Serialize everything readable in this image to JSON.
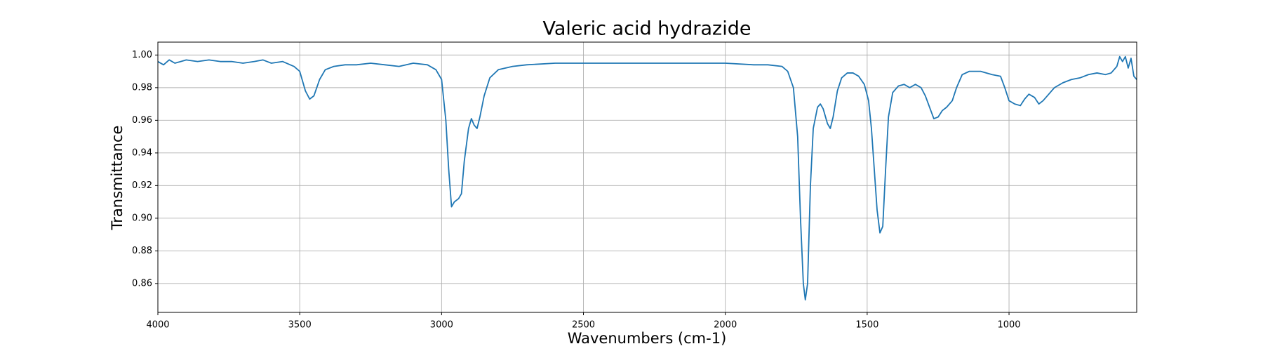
{
  "chart_data": {
    "type": "line",
    "title": "Valeric acid hydrazide",
    "x_label": "Wavenumbers (cm-1)",
    "y_label": "Transmittance",
    "color": "#1f77b4",
    "grid": true,
    "xlim": [
      4000,
      550
    ],
    "ylim": [
      0.8423,
      1.0079
    ],
    "xticks": [
      4000,
      3500,
      3000,
      2500,
      2000,
      1500,
      1000
    ],
    "yticks": [
      0.86,
      0.88,
      {
        "value": 0.9,
        "label": "0.90"
      },
      0.92,
      0.94,
      0.96,
      0.98,
      {
        "value": 1,
        "label": "1.00"
      }
    ],
    "x": [
      4000,
      3980,
      3960,
      3940,
      3900,
      3860,
      3820,
      3780,
      3740,
      3700,
      3660,
      3630,
      3600,
      3560,
      3520,
      3500,
      3480,
      3465,
      3450,
      3430,
      3410,
      3380,
      3340,
      3300,
      3250,
      3200,
      3150,
      3100,
      3050,
      3020,
      3000,
      2985,
      2975,
      2965,
      2955,
      2940,
      2930,
      2920,
      2905,
      2895,
      2885,
      2875,
      2865,
      2850,
      2830,
      2800,
      2750,
      2700,
      2600,
      2500,
      2400,
      2300,
      2200,
      2100,
      2000,
      1900,
      1850,
      1800,
      1780,
      1760,
      1745,
      1735,
      1725,
      1718,
      1710,
      1700,
      1690,
      1675,
      1665,
      1655,
      1640,
      1630,
      1620,
      1605,
      1590,
      1570,
      1550,
      1530,
      1510,
      1495,
      1485,
      1475,
      1465,
      1455,
      1445,
      1435,
      1425,
      1410,
      1390,
      1370,
      1350,
      1330,
      1310,
      1295,
      1280,
      1265,
      1250,
      1235,
      1220,
      1200,
      1185,
      1165,
      1140,
      1100,
      1060,
      1030,
      1015,
      1000,
      980,
      960,
      945,
      930,
      910,
      895,
      880,
      860,
      840,
      810,
      780,
      750,
      720,
      690,
      660,
      640,
      620,
      610,
      600,
      590,
      580,
      570,
      560,
      550
    ],
    "values": [
      0.996,
      0.994,
      0.997,
      0.995,
      0.997,
      0.996,
      0.997,
      0.996,
      0.996,
      0.995,
      0.996,
      0.997,
      0.995,
      0.996,
      0.993,
      0.99,
      0.978,
      0.973,
      0.975,
      0.985,
      0.991,
      0.993,
      0.994,
      0.994,
      0.995,
      0.994,
      0.993,
      0.995,
      0.994,
      0.991,
      0.985,
      0.96,
      0.93,
      0.907,
      0.91,
      0.912,
      0.915,
      0.935,
      0.955,
      0.961,
      0.957,
      0.955,
      0.962,
      0.975,
      0.986,
      0.991,
      0.993,
      0.994,
      0.995,
      0.995,
      0.995,
      0.995,
      0.995,
      0.995,
      0.995,
      0.994,
      0.994,
      0.993,
      0.99,
      0.98,
      0.95,
      0.9,
      0.86,
      0.85,
      0.86,
      0.92,
      0.955,
      0.968,
      0.97,
      0.967,
      0.958,
      0.955,
      0.962,
      0.978,
      0.986,
      0.989,
      0.989,
      0.987,
      0.982,
      0.972,
      0.955,
      0.93,
      0.905,
      0.891,
      0.895,
      0.93,
      0.962,
      0.977,
      0.981,
      0.982,
      0.98,
      0.982,
      0.98,
      0.975,
      0.968,
      0.961,
      0.962,
      0.966,
      0.968,
      0.972,
      0.98,
      0.988,
      0.99,
      0.99,
      0.988,
      0.987,
      0.98,
      0.972,
      0.97,
      0.969,
      0.973,
      0.976,
      0.974,
      0.97,
      0.972,
      0.976,
      0.98,
      0.983,
      0.985,
      0.986,
      0.988,
      0.989,
      0.988,
      0.989,
      0.993,
      0.999,
      0.996,
      0.999,
      0.992,
      0.998,
      0.987,
      0.985
    ]
  }
}
